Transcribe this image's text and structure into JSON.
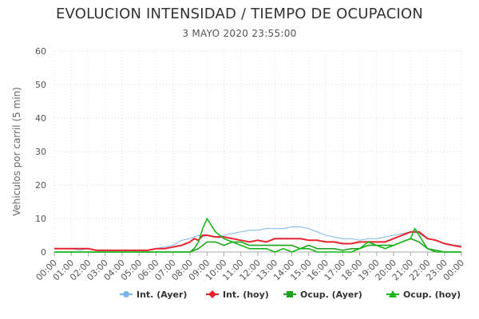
{
  "chart_data": {
    "type": "line",
    "title": "EVOLUCION INTENSIDAD / TIEMPO DE OCUPACION",
    "subtitle": "3 MAYO 2020 23:55:00",
    "xlabel": "",
    "ylabel": "Vehiculos por carril (5 min)",
    "ylim": [
      0,
      60
    ],
    "yticks": [
      0,
      10,
      20,
      30,
      40,
      50,
      60
    ],
    "xlim": [
      0,
      24
    ],
    "xticks": [
      "00:00",
      "01:00",
      "02:00",
      "03:00",
      "04:00",
      "05:00",
      "06:00",
      "07:00",
      "08:00",
      "09:00",
      "10:00",
      "11:00",
      "12:00",
      "13:00",
      "14:00",
      "15:00",
      "16:00",
      "17:00",
      "18:00",
      "19:00",
      "20:00",
      "21:00",
      "22:00",
      "23:00",
      "00:00"
    ],
    "grid": true,
    "legend_position": "bottom-right",
    "series": [
      {
        "name": "Int. (Ayer)",
        "color": "#7cb5ec",
        "marker": "circle",
        "x": [
          0,
          0.5,
          1,
          1.5,
          2,
          2.5,
          3,
          3.5,
          4,
          4.5,
          5,
          5.5,
          6,
          6.5,
          7,
          7.5,
          8,
          8.25,
          8.5,
          8.75,
          9,
          9.5,
          10,
          10.5,
          11,
          11.5,
          12,
          12.5,
          13,
          13.5,
          14,
          14.5,
          15,
          15.5,
          16,
          16.5,
          17,
          17.5,
          18,
          18.5,
          19,
          19.5,
          20,
          20.5,
          21,
          21.5,
          22,
          22.5,
          23,
          23.5,
          24
        ],
        "y": [
          1,
          1,
          1,
          0.5,
          1,
          0.5,
          0.5,
          0.5,
          0.5,
          0.5,
          0.5,
          0.5,
          1,
          1.5,
          2,
          3.5,
          4,
          4.5,
          5,
          4.5,
          5,
          4.5,
          5,
          5.5,
          6,
          6.5,
          6.5,
          7,
          7,
          7,
          7.5,
          7.5,
          7,
          6,
          5,
          4.5,
          4,
          4,
          3.5,
          4,
          4,
          4.5,
          5,
          5.5,
          6,
          5.5,
          4,
          3.5,
          2.5,
          2,
          2
        ]
      },
      {
        "name": "Int. (hoy)",
        "color": "#e8222d",
        "marker": "diamond",
        "x": [
          0,
          0.5,
          1,
          1.5,
          2,
          2.5,
          3,
          3.5,
          4,
          4.5,
          5,
          5.5,
          6,
          6.5,
          7,
          7.5,
          8,
          8.25,
          8.5,
          8.75,
          9,
          9.5,
          10,
          10.5,
          11,
          11.5,
          12,
          12.5,
          13,
          13.5,
          14,
          14.5,
          15,
          15.5,
          16,
          16.5,
          17,
          17.5,
          18,
          18.5,
          19,
          19.5,
          20,
          20.5,
          21,
          21.5,
          22,
          22.5,
          23,
          23.5,
          24
        ],
        "y": [
          1,
          1,
          1,
          1,
          1,
          0.5,
          0.5,
          0.5,
          0.5,
          0.5,
          0.5,
          0.5,
          1,
          1,
          1.5,
          2,
          3,
          4,
          3.5,
          5,
          5,
          4.5,
          4.5,
          4,
          3.5,
          3,
          3.5,
          3,
          4,
          4,
          4,
          4,
          3.5,
          3.5,
          3,
          3,
          2.5,
          2.5,
          3,
          3,
          3,
          3,
          4,
          5,
          6,
          6,
          4,
          3.5,
          2.5,
          2,
          1.5
        ]
      },
      {
        "name": "Ocup. (Ayer)",
        "color": "#1ea31e",
        "marker": "square",
        "x": [
          0,
          0.5,
          1,
          1.5,
          2,
          2.5,
          3,
          3.5,
          4,
          4.5,
          5,
          5.5,
          6,
          6.5,
          7,
          7.5,
          8,
          8.25,
          8.5,
          8.75,
          9,
          9.5,
          10,
          10.5,
          11,
          11.5,
          12,
          12.5,
          13,
          13.5,
          14,
          14.5,
          15,
          15.5,
          16,
          16.5,
          17,
          17.5,
          18,
          18.5,
          19,
          19.5,
          20,
          20.5,
          21,
          21.5,
          22,
          22.5,
          23,
          23.5,
          24
        ],
        "y": [
          0,
          0,
          0,
          0,
          0,
          0,
          0,
          0,
          0,
          0,
          0,
          0,
          0,
          0,
          0,
          0,
          0,
          0.5,
          1,
          2,
          3,
          3,
          2,
          3,
          3,
          2,
          2,
          2,
          2,
          2,
          2,
          1,
          2,
          1,
          1,
          1,
          0.5,
          1,
          1,
          2,
          2,
          2,
          2,
          3,
          4,
          3,
          1,
          0.5,
          0,
          0,
          0
        ]
      },
      {
        "name": "Ocup. (hoy)",
        "color": "#17b517",
        "marker": "triangle",
        "x": [
          0,
          0.5,
          1,
          1.5,
          2,
          2.5,
          3,
          3.5,
          4,
          4.5,
          5,
          5.5,
          6,
          6.5,
          7,
          7.5,
          8,
          8.25,
          8.5,
          8.75,
          9,
          9.25,
          9.5,
          10,
          10.5,
          11,
          11.5,
          12,
          12.5,
          13,
          13.5,
          14,
          14.5,
          15,
          15.5,
          16,
          16.5,
          17,
          17.5,
          18,
          18.5,
          19,
          19.5,
          20,
          20.5,
          21,
          21.25,
          21.5,
          22,
          22.5,
          23,
          23.5,
          24
        ],
        "y": [
          0,
          0,
          0,
          0,
          0,
          0,
          0,
          0,
          0,
          0,
          0,
          0,
          0,
          0,
          0,
          0,
          0,
          1,
          3,
          7,
          10,
          8,
          6,
          4,
          3,
          2,
          1,
          1,
          1,
          0,
          1,
          0,
          1,
          1,
          0,
          0,
          0,
          0,
          0,
          1,
          3,
          2,
          1,
          2,
          3,
          4,
          7,
          5,
          1,
          0,
          0,
          0,
          0
        ]
      }
    ]
  }
}
